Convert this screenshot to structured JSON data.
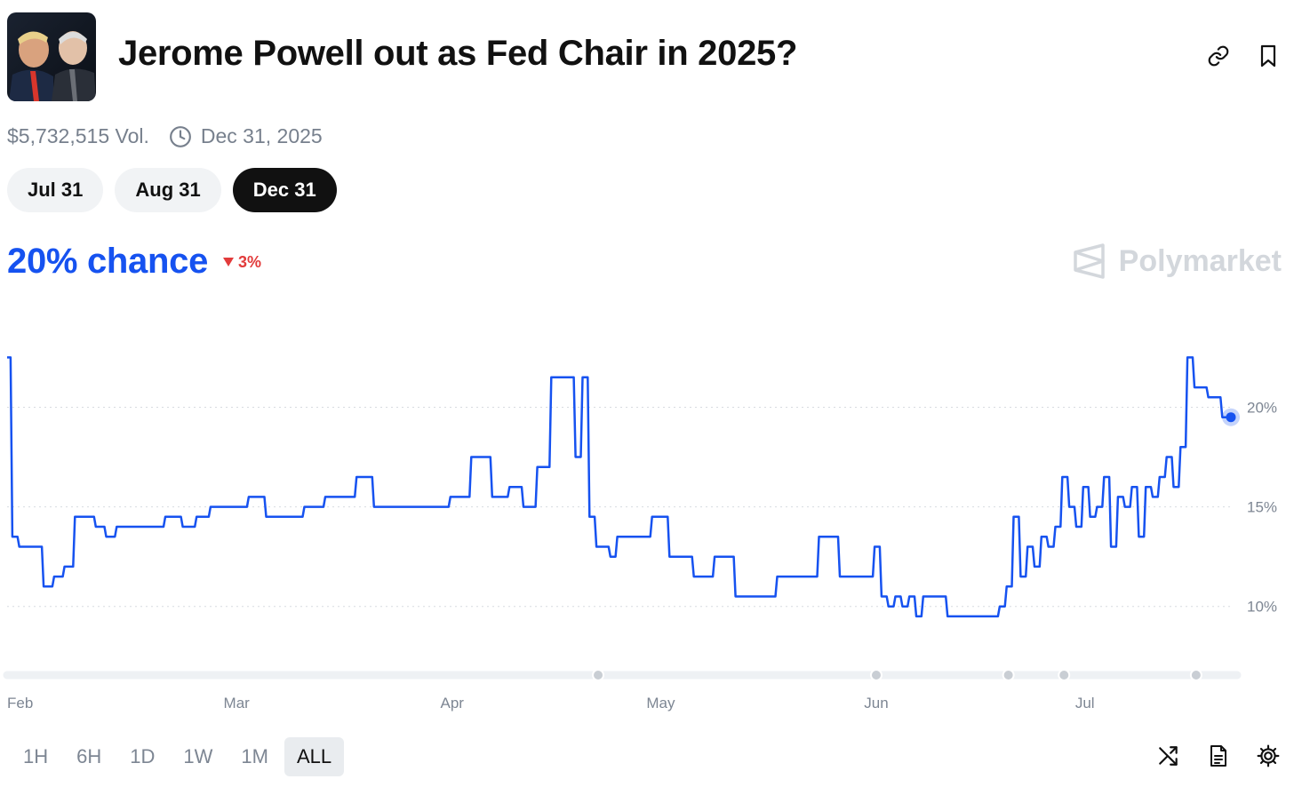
{
  "header": {
    "title": "Jerome Powell out as Fed Chair in 2025?",
    "thumbnail_icon": "trump-powell-photo"
  },
  "actions": {
    "link_icon": "link-icon",
    "bookmark_icon": "bookmark-icon"
  },
  "meta": {
    "volume": "$5,732,515 Vol.",
    "end_date": "Dec 31, 2025"
  },
  "date_tabs": [
    {
      "label": "Jul 31",
      "active": false
    },
    {
      "label": "Aug 31",
      "active": false
    },
    {
      "label": "Dec 31",
      "active": true
    }
  ],
  "outcome": {
    "chance": "20% chance",
    "delta": "3%",
    "delta_direction": "down"
  },
  "brand": {
    "name": "Polymarket"
  },
  "colors": {
    "line": "#1652f0",
    "negative": "#e23b3b",
    "active_pill": "#111111"
  },
  "chart_data": {
    "type": "line",
    "x_tick_labels": [
      "Feb",
      "Mar",
      "Apr",
      "May",
      "Jun",
      "Jul"
    ],
    "y_tick_labels": [
      "20%",
      "15%",
      "10%"
    ],
    "y_ticks": [
      10,
      15,
      20
    ],
    "ylim": [
      7,
      23.5
    ],
    "grid": true,
    "series": [
      {
        "x": [
          "2025-01-27",
          "2025-01-28",
          "2025-01-29",
          "2025-01-31",
          "2025-02-02",
          "2025-02-03",
          "2025-02-05",
          "2025-02-06",
          "2025-02-08",
          "2025-02-09",
          "2025-02-11",
          "2025-02-12",
          "2025-02-14",
          "2025-02-17",
          "2025-02-20",
          "2025-02-22",
          "2025-02-24",
          "2025-02-26",
          "2025-03-01",
          "2025-03-04",
          "2025-03-06",
          "2025-03-09",
          "2025-03-12",
          "2025-03-15",
          "2025-03-17",
          "2025-03-19",
          "2025-03-22",
          "2025-03-25",
          "2025-03-27",
          "2025-03-30",
          "2025-04-02",
          "2025-04-05",
          "2025-04-08",
          "2025-04-10",
          "2025-04-12",
          "2025-04-14",
          "2025-04-16",
          "2025-04-18",
          "2025-04-19",
          "2025-04-20",
          "2025-04-21",
          "2025-04-22",
          "2025-04-23",
          "2025-04-24",
          "2025-04-25",
          "2025-04-28",
          "2025-05-01",
          "2025-05-03",
          "2025-05-04",
          "2025-05-07",
          "2025-05-10",
          "2025-05-13",
          "2025-05-16",
          "2025-05-19",
          "2025-05-22",
          "2025-05-25",
          "2025-05-28",
          "2025-05-31",
          "2025-06-01",
          "2025-06-02",
          "2025-06-03",
          "2025-06-04",
          "2025-06-05",
          "2025-06-06",
          "2025-06-07",
          "2025-06-08",
          "2025-06-10",
          "2025-06-12",
          "2025-06-14",
          "2025-06-16",
          "2025-06-18",
          "2025-06-19",
          "2025-06-20",
          "2025-06-21",
          "2025-06-22",
          "2025-06-23",
          "2025-06-24",
          "2025-06-25",
          "2025-06-26",
          "2025-06-27",
          "2025-06-28",
          "2025-06-29",
          "2025-06-30",
          "2025-07-01",
          "2025-07-02",
          "2025-07-03",
          "2025-07-04",
          "2025-07-05",
          "2025-07-06",
          "2025-07-07",
          "2025-07-08",
          "2025-07-09",
          "2025-07-10",
          "2025-07-11",
          "2025-07-12",
          "2025-07-13",
          "2025-07-14",
          "2025-07-15",
          "2025-07-16",
          "2025-07-17",
          "2025-07-18",
          "2025-07-19",
          "2025-07-20",
          "2025-07-21",
          "2025-07-22"
        ],
        "values": [
          22.5,
          13.5,
          13.0,
          13.0,
          11.0,
          11.5,
          12.0,
          14.5,
          14.5,
          14.0,
          13.5,
          14.0,
          14.0,
          14.0,
          14.5,
          14.0,
          14.5,
          15.0,
          15.0,
          15.5,
          14.5,
          14.5,
          15.0,
          15.5,
          15.5,
          16.5,
          15.0,
          15.0,
          15.0,
          15.0,
          15.5,
          17.5,
          15.5,
          16.0,
          15.0,
          17.0,
          21.5,
          21.5,
          17.5,
          21.5,
          14.5,
          13.0,
          13.0,
          12.5,
          13.5,
          13.5,
          14.5,
          12.5,
          12.5,
          11.5,
          12.5,
          10.5,
          10.5,
          11.5,
          11.5,
          13.5,
          11.5,
          11.5,
          13.0,
          10.5,
          10.0,
          10.5,
          10.0,
          10.5,
          9.5,
          10.5,
          10.5,
          9.5,
          9.5,
          9.5,
          9.5,
          10.0,
          11.0,
          14.5,
          11.5,
          13.0,
          12.0,
          13.5,
          13.0,
          14.0,
          16.5,
          15.0,
          14.0,
          16.0,
          14.5,
          15.0,
          16.5,
          13.0,
          15.5,
          15.0,
          16.0,
          13.5,
          16.0,
          15.5,
          16.5,
          17.5,
          16.0,
          18.0,
          22.5,
          21.0,
          21.0,
          20.5,
          20.5,
          19.5,
          19.5
        ]
      }
    ],
    "last_value": 19.5,
    "range_markers": [
      "2025-04-22",
      "2025-06-01",
      "2025-06-20",
      "2025-06-28",
      "2025-07-17"
    ]
  },
  "time_ranges": [
    {
      "label": "1H",
      "active": false
    },
    {
      "label": "6H",
      "active": false
    },
    {
      "label": "1D",
      "active": false
    },
    {
      "label": "1W",
      "active": false
    },
    {
      "label": "1M",
      "active": false
    },
    {
      "label": "ALL",
      "active": true
    }
  ],
  "chart_controls": {
    "shuffle_icon": "shuffle-icon",
    "document_icon": "document-icon",
    "settings_icon": "gear-icon"
  }
}
